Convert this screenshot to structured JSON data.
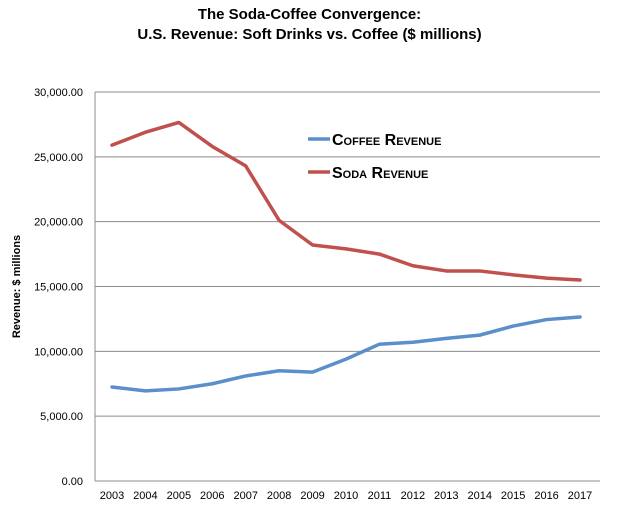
{
  "chart_data": {
    "type": "line",
    "title": "The Soda-Coffee Convergence:",
    "subtitle": "U.S. Revenue: Soft Drinks vs. Coffee ($ millions)",
    "xlabel": "",
    "ylabel": "Revenue: $ millions",
    "x": [
      "2003",
      "2004",
      "2005",
      "2006",
      "2007",
      "2008",
      "2009",
      "2010",
      "2011",
      "2012",
      "2013",
      "2014",
      "2015",
      "2016",
      "2017"
    ],
    "ylim": [
      0,
      30000
    ],
    "yticks": [
      0,
      5000,
      10000,
      15000,
      20000,
      25000,
      30000
    ],
    "ytick_labels": [
      "0.00",
      "5,000.00",
      "10,000.00",
      "15,000.00",
      "20,000.00",
      "25,000.00",
      "30,000.00"
    ],
    "grid": true,
    "legend_position": "top-right",
    "series": [
      {
        "name": "Coffee Revenue",
        "color": "#5b8fc9",
        "values": [
          7250,
          6950,
          7100,
          7500,
          8100,
          8500,
          8400,
          9400,
          10550,
          10700,
          11000,
          11250,
          11950,
          12450,
          12650
        ]
      },
      {
        "name": "Soda Revenue",
        "color": "#c0504d",
        "values": [
          25900,
          26900,
          27650,
          25800,
          24300,
          20100,
          18200,
          17900,
          17500,
          16600,
          16200,
          16200,
          15900,
          15650,
          15500
        ]
      }
    ]
  }
}
